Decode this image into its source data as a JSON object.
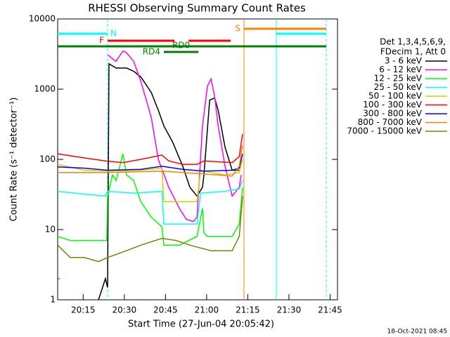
{
  "chart_data": {
    "type": "line",
    "title": "RHESSI Observing Summary Count Rates",
    "xlabel": "Start Time (27-Jun-04 20:05:42)",
    "ylabel": "Count Rate (s⁻¹ detector⁻¹)",
    "footer": "18-Oct-2021 08:45",
    "legend_title": [
      "Det 1,3,4,5,6,9,",
      "FDecim 1, Att 0"
    ],
    "log_y": true,
    "xlim": [
      5.7,
      107.7
    ],
    "ylim": [
      1,
      10000
    ],
    "xticks": [
      {
        "value": 15,
        "label": "20:15"
      },
      {
        "value": 30,
        "label": "20:30"
      },
      {
        "value": 45,
        "label": "20:45"
      },
      {
        "value": 60,
        "label": "21:00"
      },
      {
        "value": 75,
        "label": "21:15"
      },
      {
        "value": 90,
        "label": "21:30"
      },
      {
        "value": 105,
        "label": "21:45"
      }
    ],
    "yticks": [
      1,
      10,
      100,
      1000,
      10000
    ],
    "series": [
      {
        "name": "3 - 6 keV",
        "color": "#000000",
        "x": [
          20.6,
          23.1,
          23.9,
          24.4,
          27,
          30.8,
          33.4,
          36,
          39.8,
          42.4,
          44.4,
          47.5,
          51.3,
          53.9,
          56.5,
          58.5,
          59,
          61.1,
          62.9,
          64.2,
          66.7,
          69.3,
          71.9
        ],
        "values": [
          1,
          2,
          1.5,
          2300,
          2000,
          2000,
          1800,
          1500,
          900,
          500,
          300,
          180,
          80,
          40,
          30,
          40,
          60,
          700,
          750,
          500,
          150,
          70,
          70
        ]
      },
      {
        "name": "6 - 12 keV",
        "color": "#ff00ff",
        "x": [
          5.7,
          6.5,
          null,
          23.9,
          24.4,
          25.7,
          27,
          29.5,
          30.8,
          33.4,
          36,
          39.8,
          42.4,
          46.2,
          50.1,
          52.6,
          55.2,
          56.5,
          58.5,
          60.3,
          61.6,
          62.9,
          64.2,
          66.7,
          69.3,
          71.9,
          72.6
        ],
        "values": [
          2,
          2,
          null,
          3000,
          3000,
          2700,
          2500,
          3500,
          3300,
          2500,
          1300,
          400,
          100,
          40,
          20,
          14,
          13,
          15,
          300,
          1100,
          1400,
          800,
          300,
          80,
          30,
          40,
          60
        ]
      },
      {
        "name": "12 - 25 keV",
        "color": "#00ff00",
        "x": [
          5.7,
          10.3,
          15.4,
          20.6,
          23.6,
          23.9,
          25.7,
          27,
          29.5,
          30.8,
          33.4,
          36,
          39.8,
          43.7,
          44.4,
          50.1,
          56.5,
          58.5,
          59,
          60.3,
          64.2,
          69.3,
          71.9,
          73.1
        ],
        "values": [
          8,
          7,
          7,
          7,
          7,
          30,
          60,
          50,
          120,
          60,
          50,
          25,
          15,
          11,
          6,
          6,
          8,
          20,
          9,
          8,
          8,
          8,
          12,
          40
        ]
      },
      {
        "name": "25 - 50 keV",
        "color": "#00ffff",
        "x": [
          5.7,
          15.4,
          23.1,
          23.9,
          33.4,
          43.7,
          44.4,
          56.5,
          57.8,
          66.7,
          71.9,
          73.1
        ],
        "values": [
          35,
          32,
          30,
          35,
          33,
          35,
          12,
          12,
          33,
          35,
          38,
          50
        ]
      },
      {
        "name": "50 - 100 keV",
        "color": "#d0d000",
        "x": [
          5.7,
          15.4,
          23.9,
          36,
          43.7,
          44.4,
          56.5,
          57.8,
          66.7,
          71.9,
          73.1
        ],
        "values": [
          85,
          70,
          68,
          70,
          75,
          25,
          25,
          70,
          60,
          65,
          100
        ]
      },
      {
        "name": "100 - 300 keV",
        "color": "#ff0000",
        "x": [
          5.7,
          15.4,
          23.1,
          29.5,
          36,
          43.7,
          46.2,
          51.3,
          56.5,
          59,
          69.3,
          71.9,
          73.1
        ],
        "values": [
          120,
          105,
          95,
          90,
          100,
          115,
          95,
          85,
          85,
          95,
          90,
          110,
          230
        ]
      },
      {
        "name": "300 - 800 keV",
        "color": "#0000ff",
        "x": [
          5.7,
          15.4,
          23.9,
          36,
          43.7,
          51.3,
          59,
          69.3,
          71.9,
          73.1
        ],
        "values": [
          78,
          75,
          70,
          72,
          80,
          72,
          68,
          70,
          75,
          120
        ]
      },
      {
        "name": "800 - 7000 keV",
        "color": "#ff8000",
        "x": [
          5.7,
          23.9,
          43.7,
          59,
          69.3,
          71.9,
          73.1
        ],
        "values": [
          65,
          65,
          68,
          62,
          58,
          80,
          160
        ]
      },
      {
        "name": "7000 - 15000 keV",
        "color": "#808000",
        "x": [
          5.7,
          10.3,
          15.4,
          20.6,
          23.9,
          30.8,
          36,
          43.7,
          48.8,
          53.9,
          61.6,
          69.3,
          71.9,
          73.1
        ],
        "values": [
          6,
          4,
          4,
          3.5,
          4,
          5,
          6,
          7.5,
          7,
          6,
          5,
          5,
          8,
          30
        ]
      }
    ],
    "flags": [
      {
        "label": "S",
        "color": "#ff8000",
        "segments": [
          [
            73.6,
            103.6
          ]
        ]
      },
      {
        "label": "N",
        "color": "#00ffff",
        "segments": [
          [
            5.7,
            23.9
          ],
          [
            85.4,
            103.6
          ]
        ]
      },
      {
        "label": "F",
        "color": "#ff0000",
        "segments": [
          [
            23.9,
            48.3
          ],
          [
            53.4,
            68.8
          ]
        ]
      },
      {
        "label": "RD0",
        "color": "#008000",
        "segments": [
          [
            5.7,
            103.6
          ]
        ]
      },
      {
        "label": "RD4",
        "color": "#008000",
        "segments": [
          [
            44.4,
            57
          ]
        ]
      }
    ],
    "markers": [
      {
        "x": 23.9,
        "color": "#00ffff",
        "dashed": true
      },
      {
        "x": 73.6,
        "color": "#ff8000",
        "dashed": false
      },
      {
        "x": 85.4,
        "color": "#00ffff",
        "dashed": false
      },
      {
        "x": 103.6,
        "color": "#00ffff",
        "dashed": true
      }
    ]
  }
}
